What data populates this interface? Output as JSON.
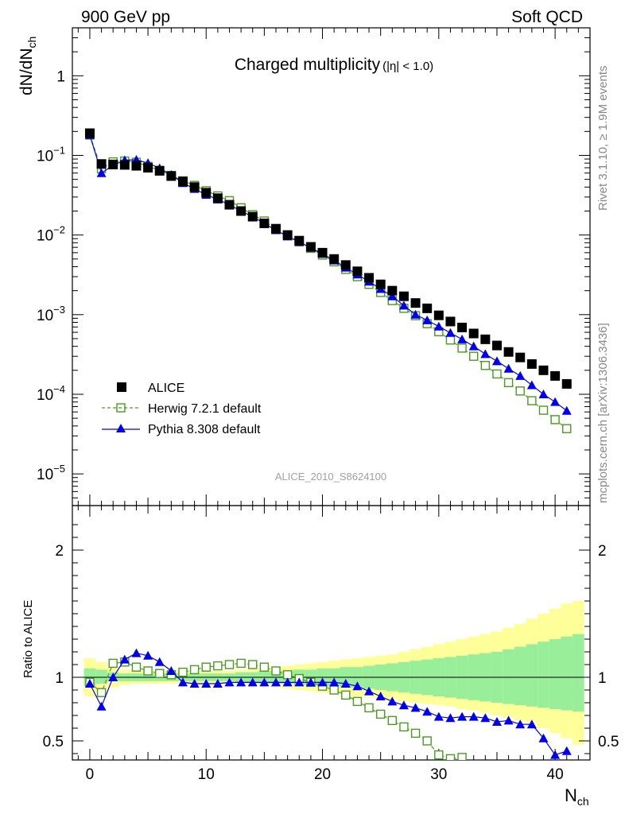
{
  "header": {
    "left": "900 GeV pp",
    "right": "Soft QCD",
    "title": "Charged multiplicity",
    "title_suffix": "(|η| < 1.0)"
  },
  "side_text": {
    "rivet": "Rivet 3.1.10, ≥ 1.9M events",
    "mcplots": "mcplots.cern.ch [arXiv:1306.3436]"
  },
  "analysis_id": "ALICE_2010_S8624100",
  "chart_data": [
    {
      "type": "scatter",
      "panel": "main",
      "ylabel": "dN/dN",
      "ylabel_sub": "ch",
      "yscale": "log",
      "ylim": [
        4e-06,
        4
      ],
      "xlim": [
        -1.5,
        43
      ],
      "y_ticks": [
        {
          "v": 1,
          "base": "1",
          "exp": ""
        },
        {
          "v": 0.1,
          "base": "10",
          "exp": "−1"
        },
        {
          "v": 0.01,
          "base": "10",
          "exp": "−2"
        },
        {
          "v": 0.001,
          "base": "10",
          "exp": "−3"
        },
        {
          "v": 0.0001,
          "base": "10",
          "exp": "−4"
        },
        {
          "v": 1e-05,
          "base": "10",
          "exp": "−5"
        }
      ],
      "legend_position": "bottom-left",
      "series": [
        {
          "name": "ALICE",
          "color": "#000000",
          "marker": "filled-square",
          "x": [
            0,
            1,
            2,
            3,
            4,
            5,
            6,
            7,
            8,
            9,
            10,
            11,
            12,
            13,
            14,
            15,
            16,
            17,
            18,
            19,
            20,
            21,
            22,
            23,
            24,
            25,
            26,
            27,
            28,
            29,
            30,
            31,
            32,
            33,
            34,
            35,
            36,
            37,
            38,
            39,
            40,
            41
          ],
          "y": [
            0.19,
            0.078,
            0.077,
            0.076,
            0.074,
            0.07,
            0.064,
            0.055,
            0.047,
            0.04,
            0.034,
            0.029,
            0.024,
            0.02,
            0.017,
            0.014,
            0.012,
            0.01,
            0.0085,
            0.0071,
            0.006,
            0.005,
            0.0042,
            0.0035,
            0.0029,
            0.0024,
            0.002,
            0.0017,
            0.0014,
            0.0012,
            0.00098,
            0.00082,
            0.00069,
            0.00058,
            0.00049,
            0.00041,
            0.00034,
            0.00029,
            0.00024,
            0.0002,
            0.00017,
            0.000135
          ]
        },
        {
          "name": "Herwig 7.2.1 default",
          "color": "#4a9a1e",
          "marker": "open-square",
          "line": "dashed",
          "x": [
            0,
            1,
            2,
            3,
            4,
            5,
            6,
            7,
            8,
            9,
            10,
            11,
            12,
            13,
            14,
            15,
            16,
            17,
            18,
            19,
            20,
            21,
            22,
            23,
            24,
            25,
            26,
            27,
            28,
            29,
            30,
            31,
            32,
            33,
            34,
            35,
            36,
            37,
            38,
            39,
            40,
            41
          ],
          "y": [
            0.18,
            0.068,
            0.083,
            0.085,
            0.082,
            0.073,
            0.065,
            0.056,
            0.048,
            0.042,
            0.036,
            0.031,
            0.027,
            0.022,
            0.018,
            0.015,
            0.012,
            0.0099,
            0.0082,
            0.0068,
            0.0056,
            0.0046,
            0.0037,
            0.003,
            0.0024,
            0.0019,
            0.0015,
            0.0012,
            0.00097,
            0.00077,
            0.00061,
            0.00048,
            0.00038,
            0.0003,
            0.00023,
            0.00018,
            0.00014,
            0.00011,
            8.3e-05,
            6.3e-05,
            4.8e-05,
            3.7e-05
          ]
        },
        {
          "name": "Pythia 8.308 default",
          "color": "#0000ee",
          "marker": "filled-triangle",
          "line": "solid",
          "x": [
            0,
            1,
            2,
            3,
            4,
            5,
            6,
            7,
            8,
            9,
            10,
            11,
            12,
            13,
            14,
            15,
            16,
            17,
            18,
            19,
            20,
            21,
            22,
            23,
            24,
            25,
            26,
            27,
            28,
            29,
            30,
            31,
            32,
            33,
            34,
            35,
            36,
            37,
            38,
            39,
            40,
            41
          ],
          "y": [
            0.18,
            0.06,
            0.075,
            0.087,
            0.088,
            0.08,
            0.069,
            0.057,
            0.045,
            0.038,
            0.032,
            0.028,
            0.024,
            0.02,
            0.017,
            0.014,
            0.0115,
            0.0096,
            0.0082,
            0.0069,
            0.0058,
            0.0048,
            0.0039,
            0.0032,
            0.0026,
            0.0021,
            0.0017,
            0.0013,
            0.001,
            0.00085,
            0.00071,
            0.00059,
            0.00049,
            0.0004,
            0.00032,
            0.00026,
            0.00021,
            0.00017,
            0.00013,
            0.0001,
            8e-05,
            6.2e-05
          ]
        }
      ]
    },
    {
      "type": "line",
      "panel": "ratio",
      "xlabel": "N",
      "xlabel_sub": "ch",
      "ylabel": "Ratio to ALICE",
      "ylim": [
        0.35,
        2.35
      ],
      "xlim": [
        -1.5,
        43
      ],
      "x_ticks": [
        0,
        10,
        20,
        30,
        40
      ],
      "y_ticks": [
        0.5,
        1,
        2
      ],
      "band_x": [
        -0.5,
        0.5,
        1.5,
        2.5,
        3.5,
        4.5,
        5.5,
        6.5,
        7.5,
        8.5,
        9.5,
        10.5,
        11.5,
        12.5,
        13.5,
        14.5,
        15.5,
        16.5,
        17.5,
        18.5,
        19.5,
        20.5,
        21.5,
        22.5,
        23.5,
        24.5,
        25.5,
        26.5,
        27.5,
        28.5,
        29.5,
        30.5,
        31.5,
        32.5,
        33.5,
        34.5,
        35.5,
        36.5,
        37.5,
        38.5,
        39.5,
        40.5,
        41.5,
        42.5
      ],
      "band_inner": [
        0.93,
        0.95,
        0.97,
        0.97,
        0.97,
        0.97,
        0.97,
        0.97,
        0.97,
        0.97,
        0.97,
        0.97,
        0.97,
        0.96,
        0.96,
        0.95,
        0.95,
        0.95,
        0.94,
        0.94,
        0.93,
        0.93,
        0.92,
        0.92,
        0.91,
        0.9,
        0.89,
        0.88,
        0.87,
        0.86,
        0.85,
        0.84,
        0.83,
        0.82,
        0.81,
        0.8,
        0.79,
        0.78,
        0.77,
        0.76,
        0.75,
        0.74,
        0.73
      ],
      "band_inner_hi": [
        1.07,
        1.06,
        1.04,
        1.03,
        1.03,
        1.03,
        1.03,
        1.03,
        1.03,
        1.03,
        1.03,
        1.03,
        1.03,
        1.04,
        1.04,
        1.05,
        1.05,
        1.05,
        1.06,
        1.06,
        1.07,
        1.07,
        1.08,
        1.08,
        1.09,
        1.1,
        1.11,
        1.12,
        1.13,
        1.14,
        1.15,
        1.16,
        1.17,
        1.18,
        1.19,
        1.2,
        1.22,
        1.24,
        1.26,
        1.28,
        1.3,
        1.32,
        1.34
      ],
      "band_outer_lo": [
        0.85,
        0.88,
        0.92,
        0.94,
        0.95,
        0.95,
        0.95,
        0.95,
        0.95,
        0.95,
        0.95,
        0.95,
        0.95,
        0.94,
        0.94,
        0.93,
        0.92,
        0.91,
        0.9,
        0.89,
        0.88,
        0.87,
        0.86,
        0.85,
        0.84,
        0.83,
        0.82,
        0.81,
        0.8,
        0.79,
        0.78,
        0.77,
        0.75,
        0.74,
        0.72,
        0.7,
        0.68,
        0.66,
        0.63,
        0.6,
        0.56,
        0.52,
        0.47
      ],
      "band_outer_hi": [
        1.15,
        1.12,
        1.08,
        1.06,
        1.05,
        1.05,
        1.05,
        1.05,
        1.05,
        1.05,
        1.05,
        1.05,
        1.05,
        1.06,
        1.06,
        1.07,
        1.08,
        1.09,
        1.1,
        1.11,
        1.12,
        1.13,
        1.14,
        1.15,
        1.16,
        1.17,
        1.18,
        1.2,
        1.22,
        1.24,
        1.26,
        1.28,
        1.3,
        1.32,
        1.34,
        1.36,
        1.39,
        1.42,
        1.46,
        1.5,
        1.54,
        1.58,
        1.6
      ],
      "series": [
        {
          "name": "Herwig 7.2.1 default",
          "color": "#4a9a1e",
          "marker": "open-square",
          "line": "dashed",
          "x": [
            0,
            1,
            2,
            3,
            4,
            5,
            6,
            7,
            8,
            9,
            10,
            11,
            12,
            13,
            14,
            15,
            16,
            17,
            18,
            19,
            20,
            21,
            22,
            23,
            24,
            25,
            26,
            27,
            28,
            29,
            30,
            31,
            32
          ],
          "y": [
            0.96,
            0.88,
            1.11,
            1.12,
            1.08,
            1.05,
            1.03,
            1.02,
            1.04,
            1.06,
            1.08,
            1.09,
            1.1,
            1.11,
            1.1,
            1.08,
            1.05,
            1.02,
            0.99,
            0.96,
            0.93,
            0.9,
            0.86,
            0.81,
            0.76,
            0.71,
            0.66,
            0.61,
            0.56,
            0.5,
            0.39,
            0.36,
            0.37
          ]
        },
        {
          "name": "Pythia 8.308 default",
          "color": "#0000ee",
          "marker": "filled-triangle",
          "line": "solid",
          "x": [
            0,
            1,
            2,
            3,
            4,
            5,
            6,
            7,
            8,
            9,
            10,
            11,
            12,
            13,
            14,
            15,
            16,
            17,
            18,
            19,
            20,
            21,
            22,
            23,
            24,
            25,
            26,
            27,
            28,
            29,
            30,
            31,
            32,
            33,
            34,
            35,
            36,
            37,
            38,
            39,
            40,
            41
          ],
          "y": [
            0.95,
            0.77,
            1.0,
            1.14,
            1.19,
            1.17,
            1.12,
            1.05,
            0.96,
            0.95,
            0.95,
            0.95,
            0.96,
            0.96,
            0.96,
            0.96,
            0.96,
            0.96,
            0.96,
            0.96,
            0.96,
            0.96,
            0.95,
            0.93,
            0.89,
            0.85,
            0.81,
            0.78,
            0.76,
            0.73,
            0.69,
            0.68,
            0.69,
            0.69,
            0.68,
            0.65,
            0.66,
            0.63,
            0.63,
            0.52,
            0.39,
            0.42
          ]
        }
      ]
    }
  ]
}
